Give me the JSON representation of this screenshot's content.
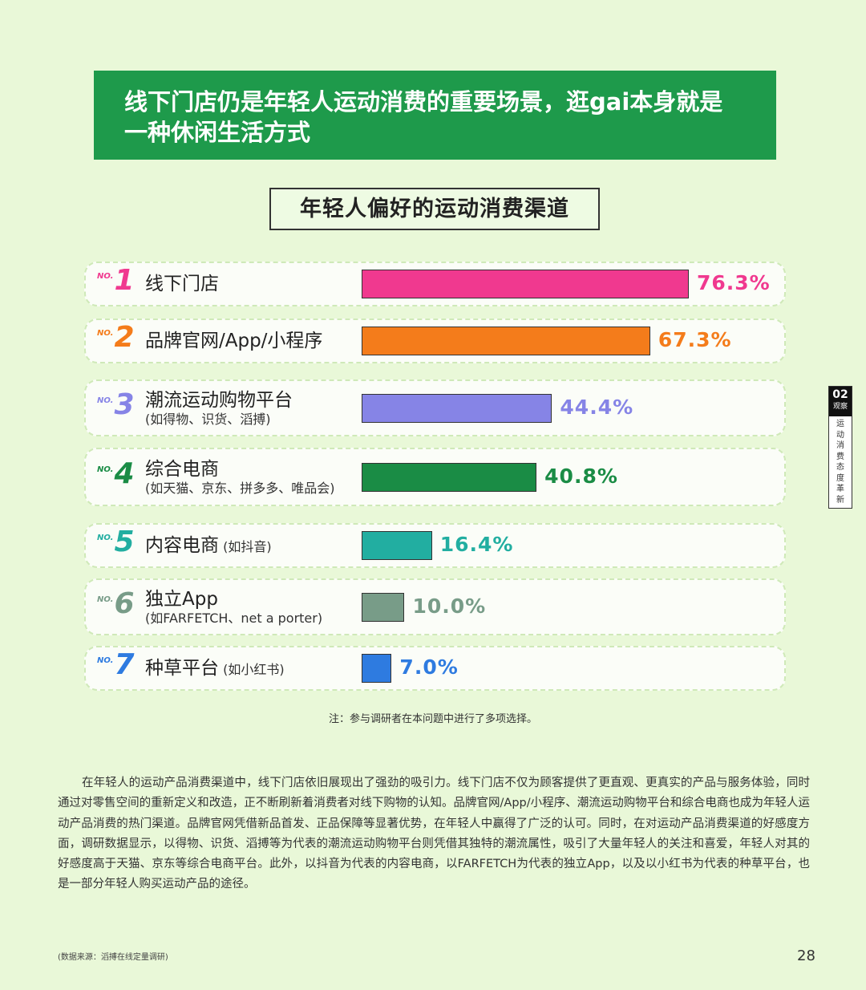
{
  "headline": "线下门店仍是年轻人运动消费的重要场景，逛gai本身就是一种休闲生活方式",
  "side_tab": {
    "number": "02",
    "label": "观察",
    "section": "运动消费态度革新"
  },
  "chart_data": {
    "type": "bar",
    "orientation": "horizontal",
    "title": "年轻人偏好的运动消费渠道",
    "rank_prefix": "NO.",
    "xlim": [
      0,
      100
    ],
    "items": [
      {
        "rank": "1",
        "label": "线下门店",
        "sub": "",
        "value": 76.3,
        "value_label": "76.3%",
        "color": "#f0398f"
      },
      {
        "rank": "2",
        "label": "品牌官网/App/小程序",
        "sub": "",
        "value": 67.3,
        "value_label": "67.3%",
        "color": "#f47c1b"
      },
      {
        "rank": "3",
        "label": "潮流运动购物平台",
        "sub": "(如得物、识货、滔搏)",
        "value": 44.4,
        "value_label": "44.4%",
        "color": "#8684e6"
      },
      {
        "rank": "4",
        "label": "综合电商",
        "sub": "(如天猫、京东、拼多多、唯品会)",
        "value": 40.8,
        "value_label": "40.8%",
        "color": "#1a8c45"
      },
      {
        "rank": "5",
        "label": "内容电商",
        "inline_sub": "(如抖音)",
        "value": 16.4,
        "value_label": "16.4%",
        "color": "#22aea1"
      },
      {
        "rank": "6",
        "label": "独立App",
        "sub": "(如FARFETCH、net a porter)",
        "value": 10.0,
        "value_label": "10.0%",
        "color": "#789c88"
      },
      {
        "rank": "7",
        "label": "种草平台",
        "inline_sub": "(如小红书)",
        "value": 7.0,
        "value_label": "7.0%",
        "color": "#2e7be0"
      }
    ]
  },
  "note": "注：参与调研者在本问题中进行了多项选择。",
  "paragraph": "在年轻人的运动产品消费渠道中，线下门店依旧展现出了强劲的吸引力。线下门店不仅为顾客提供了更直观、更真实的产品与服务体验，同时通过对零售空间的重新定义和改造，正不断刷新着消费者对线下购物的认知。品牌官网/App/小程序、潮流运动购物平台和综合电商也成为年轻人运动产品消费的热门渠道。品牌官网凭借新品首发、正品保障等显著优势，在年轻人中赢得了广泛的认可。同时，在对运动产品消费渠道的好感度方面，调研数据显示，以得物、识货、滔搏等为代表的潮流运动购物平台则凭借其独特的潮流属性，吸引了大量年轻人的关注和喜爱，年轻人对其的好感度高于天猫、京东等综合电商平台。此外，以抖音为代表的内容电商，以FARFETCH为代表的独立App，以及以小红书为代表的种草平台，也是一部分年轻人购买运动产品的途径。",
  "source": "(数据来源：滔搏在线定量调研)",
  "page_number": "28"
}
